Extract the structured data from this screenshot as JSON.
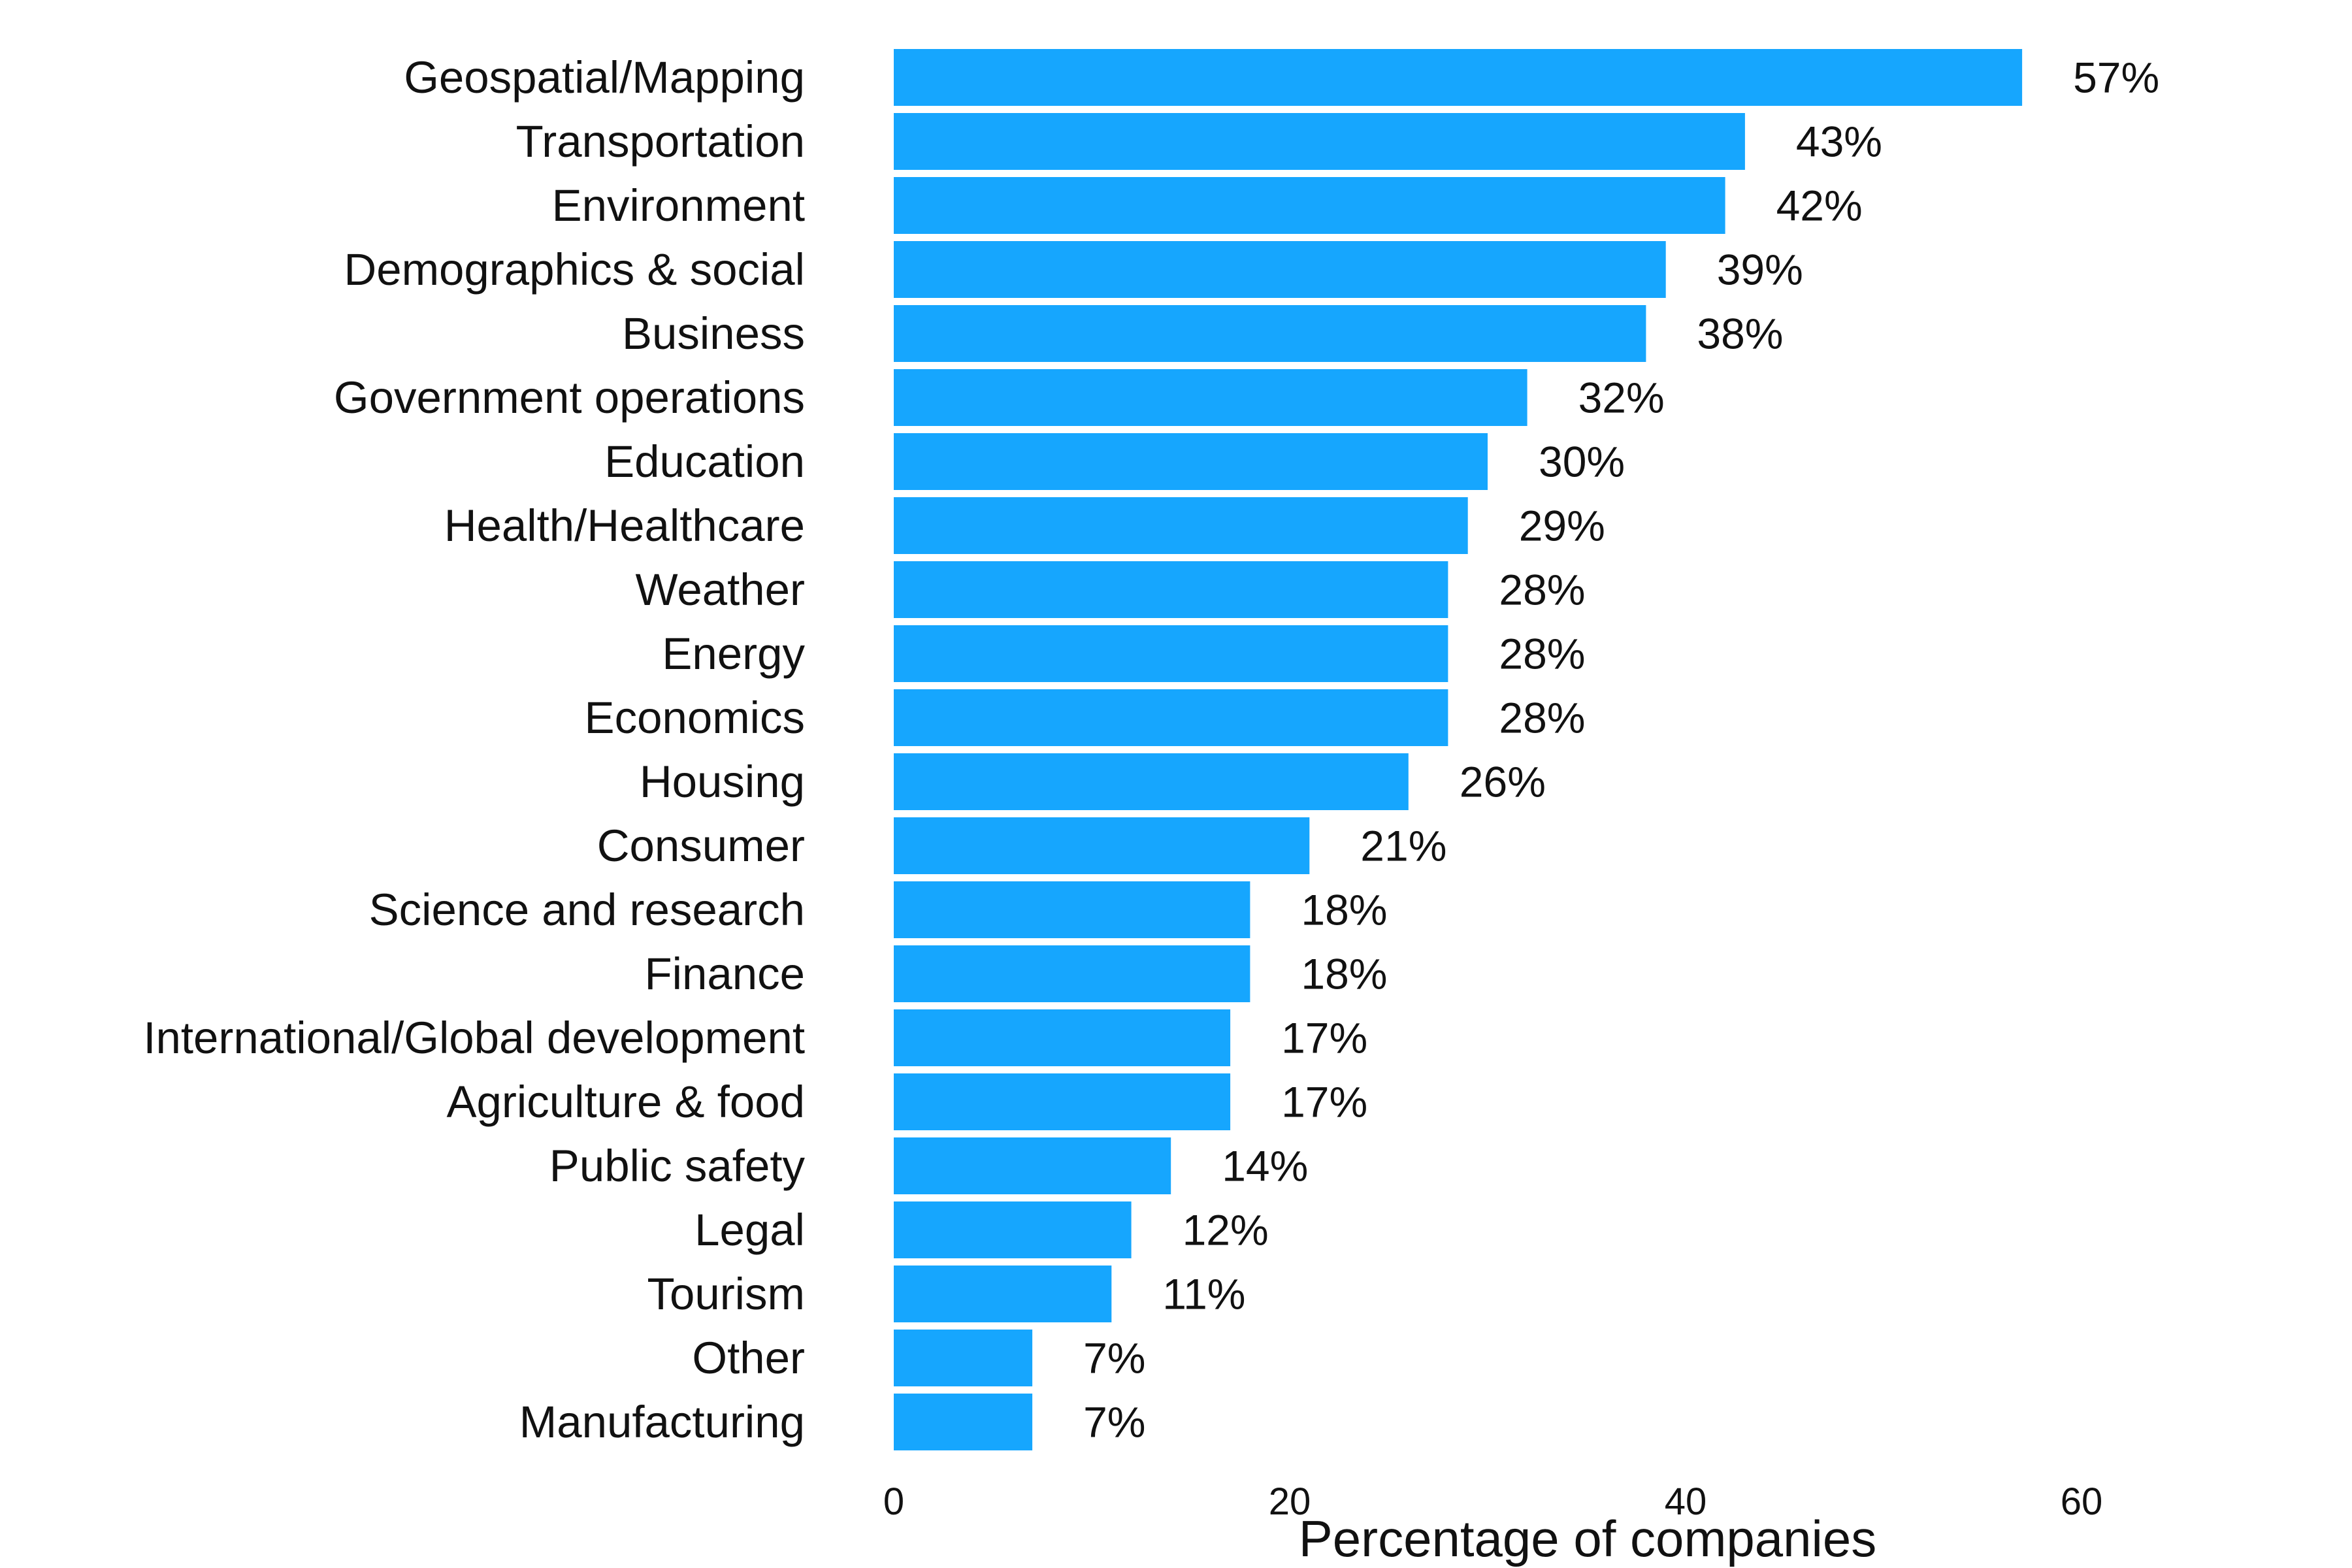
{
  "chart_data": {
    "type": "bar",
    "orientation": "horizontal",
    "categories": [
      "Geospatial/Mapping",
      "Transportation",
      "Environment",
      "Demographics & social",
      "Business",
      "Government operations",
      "Education",
      "Health/Healthcare",
      "Weather",
      "Energy",
      "Economics",
      "Housing",
      "Consumer",
      "Science and research",
      "Finance",
      "International/Global development",
      "Agriculture & food",
      "Public safety",
      "Legal",
      "Tourism",
      "Other",
      "Manufacturing"
    ],
    "values": [
      57,
      43,
      42,
      39,
      38,
      32,
      30,
      29,
      28,
      28,
      28,
      26,
      21,
      18,
      18,
      17,
      17,
      14,
      12,
      11,
      7,
      7
    ],
    "value_labels": [
      "57%",
      "43%",
      "42%",
      "39%",
      "38%",
      "32%",
      "30%",
      "29%",
      "28%",
      "28%",
      "28%",
      "26%",
      "21%",
      "18%",
      "18%",
      "17%",
      "17%",
      "14%",
      "12%",
      "11%",
      "7%",
      "7%"
    ],
    "xlabel": "Percentage of companies",
    "xticks": [
      0,
      20,
      40,
      60
    ],
    "xlim": [
      0,
      60
    ],
    "grid": false,
    "legend": "none",
    "bar_color": "#16a6fe"
  }
}
